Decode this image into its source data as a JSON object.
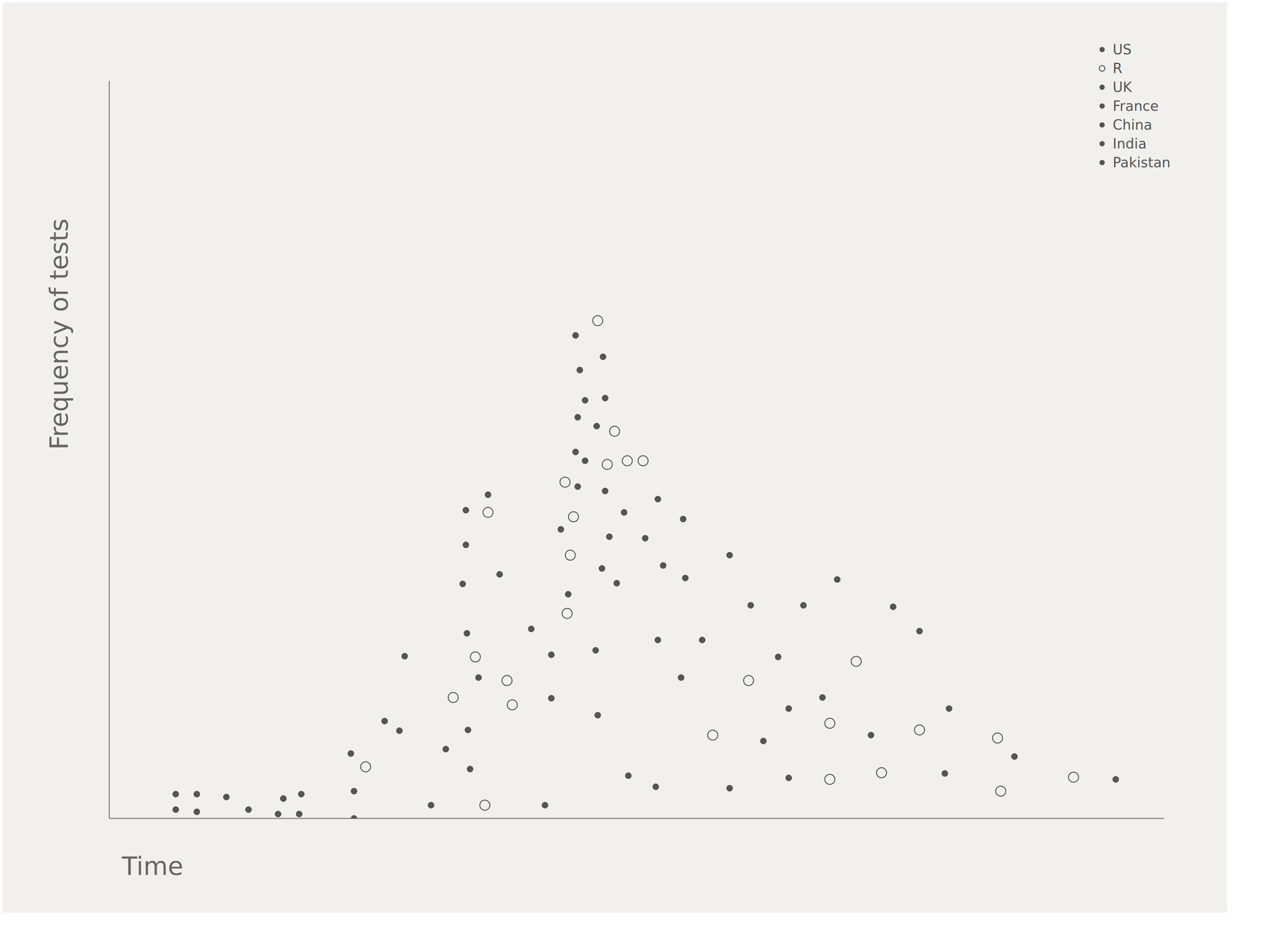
{
  "chart_data": {
    "type": "scatter",
    "x_label": "Time",
    "y_label": "Frequency of tests",
    "xlim": [
      0,
      100
    ],
    "ylim": [
      0,
      100
    ],
    "tick_labels": false,
    "grid": false,
    "legend": "top-right",
    "series": [
      {
        "name": "US",
        "color": "#555555",
        "marker": "dot",
        "x": [
          6.3,
          8.3,
          6.3,
          8.3,
          11.1,
          13.2,
          16.5,
          18.2,
          16.0,
          18.0,
          44.2,
          46.8,
          44.6,
          45.1
        ],
        "values": [
          3.3,
          3.3,
          1.2,
          0.9,
          2.9,
          1.2,
          2.7,
          3.3,
          0.6,
          0.6,
          65.5,
          62.6,
          60.8,
          56.7
        ]
      },
      {
        "name": "R",
        "color": "#555555",
        "marker": "open_circle",
        "x": [
          46.3,
          47.9,
          47.2,
          49.1,
          50.6,
          43.2,
          44.0,
          43.7,
          43.4,
          35.9,
          34.7,
          37.7,
          38.2,
          32.6,
          24.3,
          35.6,
          57.2,
          60.6,
          70.8,
          68.3,
          76.8,
          84.2,
          73.2,
          68.3,
          84.5,
          91.4
        ],
        "values": [
          67.5,
          52.5,
          48.0,
          48.5,
          48.5,
          45.6,
          40.9,
          35.7,
          27.8,
          41.5,
          21.9,
          18.7,
          15.4,
          16.4,
          7.0,
          1.8,
          11.3,
          18.7,
          21.3,
          12.9,
          12.0,
          10.9,
          6.2,
          5.3,
          3.7,
          5.6
        ]
      },
      {
        "name": "UK",
        "color": "#555555",
        "marker": "dot",
        "x": [
          47.0,
          44.4,
          46.2,
          44.2,
          45.1,
          44.4,
          47.0,
          52.0,
          54.4,
          42.8,
          48.8,
          47.4,
          50.8
        ],
        "values": [
          57.0,
          54.4,
          53.2,
          49.7,
          48.5,
          45.0,
          44.4,
          43.3,
          40.6,
          39.2,
          41.5,
          38.2,
          38.0
        ]
      },
      {
        "name": "France",
        "color": "#555555",
        "marker": "dot",
        "x": [
          46.7,
          48.1,
          52.5,
          54.6,
          58.8,
          43.5,
          40.0,
          46.1,
          41.9,
          35.9,
          33.8,
          33.8,
          33.5,
          37.0
        ],
        "values": [
          33.9,
          31.9,
          34.3,
          32.6,
          35.7,
          30.4,
          25.7,
          22.8,
          22.2,
          43.9,
          41.8,
          37.1,
          31.8,
          33.1
        ]
      },
      {
        "name": "China",
        "color": "#555555",
        "marker": "dot",
        "x": [
          33.9,
          28.0,
          35.0,
          41.9,
          26.1,
          27.5,
          34.0,
          31.9,
          22.9,
          34.2,
          23.2,
          23.2,
          30.5,
          41.3
        ],
        "values": [
          25.1,
          22.0,
          19.1,
          16.3,
          13.2,
          11.9,
          12.0,
          9.4,
          8.8,
          6.7,
          3.7,
          0,
          1.8,
          1.8
        ]
      },
      {
        "name": "India",
        "color": "#555555",
        "marker": "dot",
        "x": [
          46.3,
          52.0,
          56.2,
          54.2,
          60.8,
          63.4,
          65.8,
          69.0,
          74.3,
          76.8,
          67.6,
          64.4,
          72.2
        ],
        "values": [
          14.0,
          24.2,
          24.2,
          19.1,
          28.9,
          21.9,
          28.9,
          32.4,
          28.7,
          25.4,
          16.4,
          14.9,
          11.3
        ]
      },
      {
        "name": "Pakistan",
        "color": "#555555",
        "marker": "dot",
        "x": [
          79.6,
          85.8,
          62.0,
          49.2,
          51.8,
          58.8,
          64.4,
          79.2,
          95.4
        ],
        "values": [
          14.9,
          8.4,
          10.5,
          5.8,
          4.3,
          4.1,
          5.5,
          6.1,
          5.3
        ]
      }
    ]
  }
}
